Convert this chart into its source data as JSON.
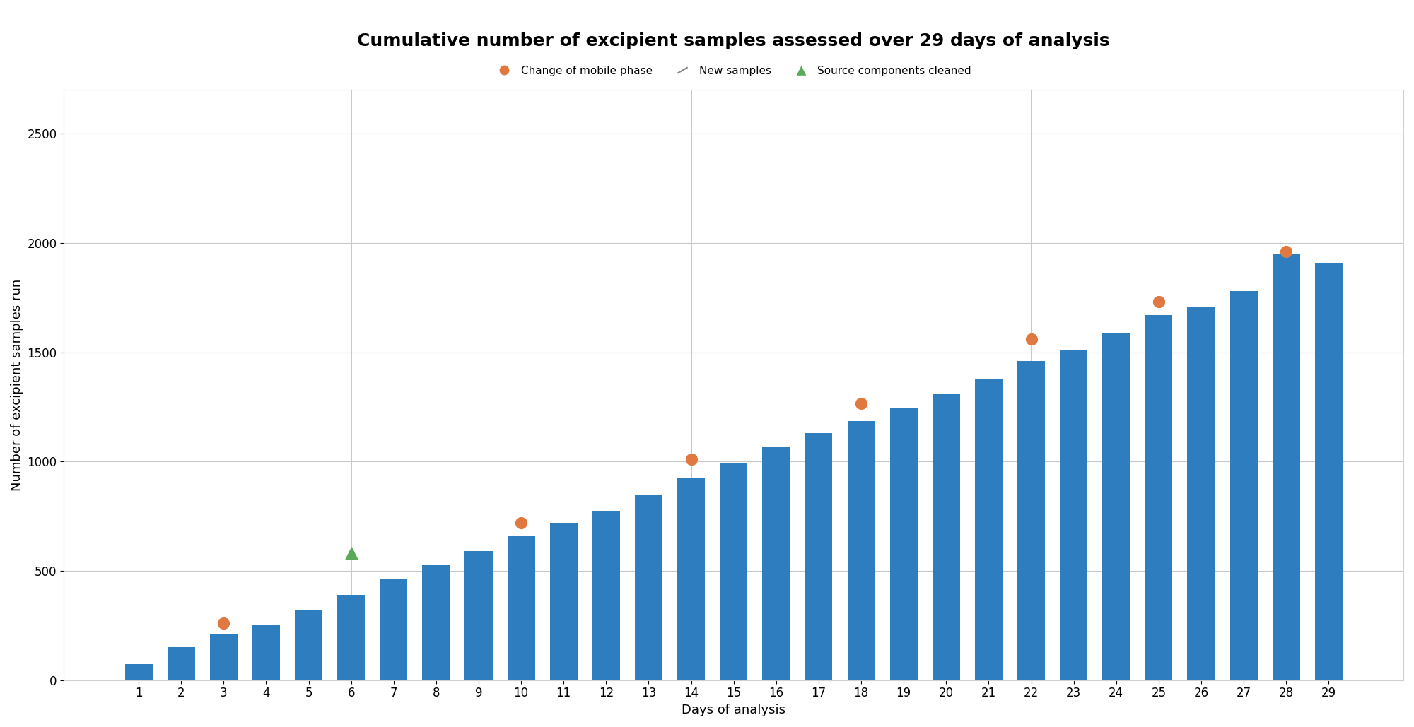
{
  "title": "Cumulative number of excipient samples assessed over 29 days of analysis",
  "xlabel": "Days of analysis",
  "ylabel": "Number of excipient samples run",
  "days": [
    1,
    2,
    3,
    4,
    5,
    6,
    7,
    8,
    9,
    10,
    11,
    12,
    13,
    14,
    15,
    16,
    17,
    18,
    19,
    20,
    21,
    22,
    23,
    24,
    25,
    26,
    27,
    28,
    29
  ],
  "values": [
    75,
    150,
    210,
    255,
    320,
    390,
    460,
    525,
    590,
    660,
    720,
    775,
    850,
    925,
    990,
    1065,
    1130,
    1185,
    1245,
    1310,
    1380,
    1460,
    1510,
    1590,
    1670,
    1710,
    1780,
    1950,
    1910
  ],
  "bar_color": "#2e7ebf",
  "bg_color": "#ffffff",
  "grid_color": "#c8c8c8",
  "vline_color": "#aac4e0",
  "vline_days": [
    6,
    14,
    22
  ],
  "mobile_phase_days": [
    3,
    10,
    14,
    18,
    22,
    25,
    28
  ],
  "mobile_phase_values": [
    260,
    720,
    1010,
    1265,
    1560,
    1730,
    1960
  ],
  "mobile_phase_color": "#e07840",
  "source_cleaned_days": [
    6
  ],
  "source_cleaned_values": [
    580
  ],
  "source_cleaned_color": "#5aaa5a",
  "title_fontsize": 18,
  "axis_label_fontsize": 13,
  "tick_fontsize": 12,
  "legend_fontsize": 11,
  "ylim": [
    0,
    2700
  ],
  "yticks": [
    0,
    500,
    1000,
    1500,
    2000,
    2500
  ]
}
